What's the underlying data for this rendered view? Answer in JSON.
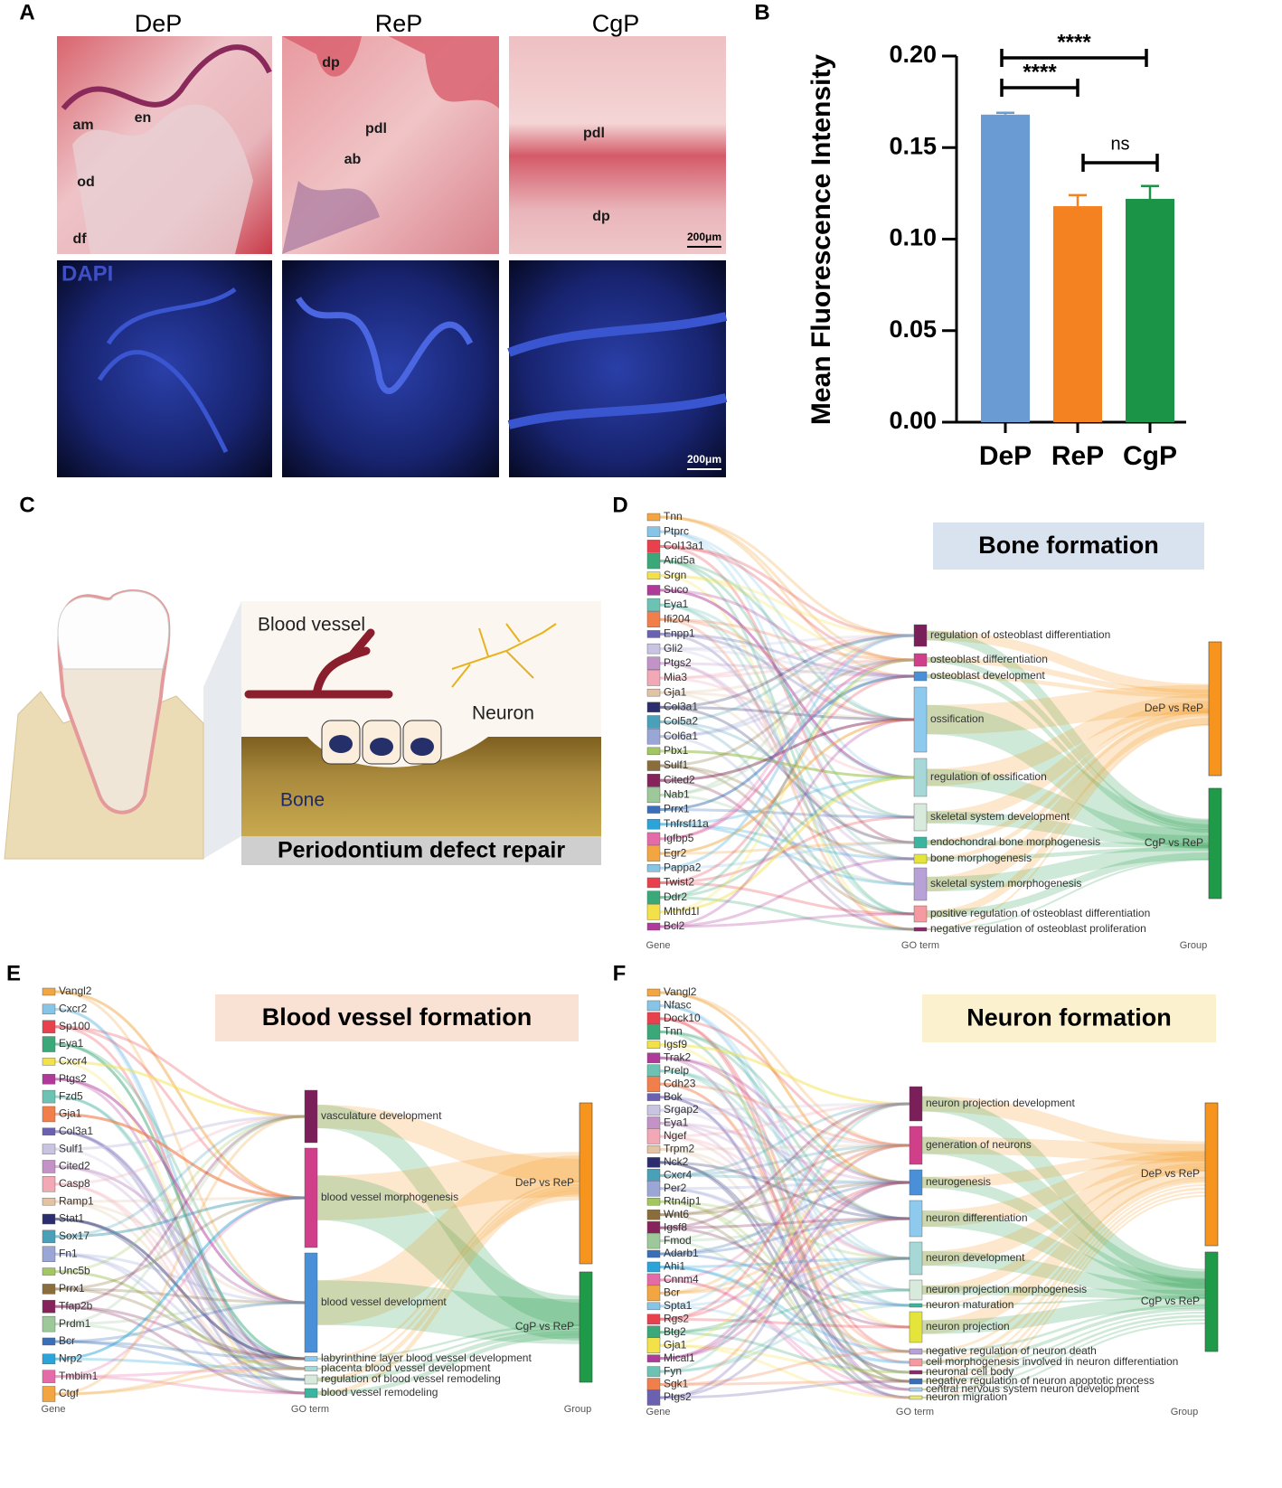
{
  "panel_labels": [
    "A",
    "B",
    "C",
    "D",
    "E",
    "F"
  ],
  "panel_a": {
    "columns": [
      "DeP",
      "ReP",
      "CgP"
    ],
    "stain_label": "DAPI",
    "annotations": [
      "am",
      "en",
      "od",
      "df",
      "dp",
      "pdl",
      "ab",
      "pdl",
      "dp"
    ],
    "scale_bars": [
      "200μm",
      "200μm"
    ]
  },
  "chart_data": {
    "type": "bar",
    "ylabel": "Mean Fluorescence Intensity",
    "categories": [
      "DeP",
      "ReP",
      "CgP"
    ],
    "values": [
      0.168,
      0.118,
      0.122
    ],
    "errors": [
      0.001,
      0.006,
      0.007
    ],
    "colors": [
      "#6a9bd3",
      "#f58220",
      "#1b9448"
    ],
    "ylim": [
      0,
      0.2
    ],
    "yticks": [
      {
        "value": 0,
        "label": "0.00"
      },
      {
        "value": 0.05,
        "label": "0.05"
      },
      {
        "value": 0.1,
        "label": "0.10"
      },
      {
        "value": 0.15,
        "label": "0.15"
      },
      {
        "value": 0.2,
        "label": "0.20"
      }
    ],
    "significance": [
      "****",
      "****",
      "ns"
    ]
  },
  "panel_c": {
    "labels": [
      "Blood vessel",
      "Neuron",
      "Bone"
    ],
    "caption": "Periodontium defect repair"
  },
  "sankeys": [
    {
      "title": "Bone formation",
      "columns": [
        "Gene",
        "GO term",
        "Group"
      ],
      "genes": [
        "Tnn",
        "Ptprc",
        "Col13a1",
        "Arid5a",
        "Srgn",
        "Suco",
        "Eya1",
        "Ifi204",
        "Enpp1",
        "Gli2",
        "Ptgs2",
        "Mia3",
        "Gja1",
        "Col3a1",
        "Col5a2",
        "Col6a1",
        "Pbx1",
        "Sulf1",
        "Cited2",
        "Nab1",
        "Prrx1",
        "Tnfrsf11a",
        "Igfbp5",
        "Egr2",
        "Pappa2",
        "Twist2",
        "Ddr2",
        "Mthfd1l",
        "Bcl2"
      ],
      "go_terms": [
        "regulation of osteoblast differentiation",
        "osteoblast differentiation",
        "osteoblast development",
        "ossification",
        "regulation of ossification",
        "skeletal system development",
        "endochondral bone morphogenesis",
        "bone morphogenesis",
        "skeletal system morphogenesis",
        "positive regulation of osteoblast differentiation",
        "negative regulation of osteoblast proliferation"
      ],
      "groups": [
        "DeP vs ReP",
        "CgP vs ReP"
      ]
    },
    {
      "title": "Blood vessel formation",
      "columns": [
        "Gene",
        "GO term",
        "Group"
      ],
      "genes": [
        "Vangl2",
        "Cxcr2",
        "Sp100",
        "Eya1",
        "Cxcr4",
        "Ptgs2",
        "Fzd5",
        "Gja1",
        "Col3a1",
        "Sulf1",
        "Cited2",
        "Casp8",
        "Ramp1",
        "Stat1",
        "Sox17",
        "Fn1",
        "Unc5b",
        "Prrx1",
        "Tfap2b",
        "Prdm1",
        "Bcr",
        "Nrp2",
        "Tmbim1",
        "Ctgf"
      ],
      "go_terms": [
        "vasculature development",
        "blood vessel morphogenesis",
        "blood vessel development",
        "labyrinthine layer blood vessel development",
        "placenta blood vessel development",
        "regulation of blood vessel remodeling",
        "blood vessel remodeling"
      ],
      "groups": [
        "DeP vs ReP",
        "CgP vs ReP"
      ]
    },
    {
      "title": "Neuron formation",
      "columns": [
        "Gene",
        "GO term",
        "Group"
      ],
      "genes": [
        "Vangl2",
        "Nfasc",
        "Dock10",
        "Tnn",
        "Igsf9",
        "Trak2",
        "Prelp",
        "Cdh23",
        "Bok",
        "Srgap2",
        "Eya1",
        "Ngef",
        "Trpm2",
        "Nck2",
        "Cxcr4",
        "Per2",
        "Rtn4ip1",
        "Wnt6",
        "Igsf8",
        "Fmod",
        "Adarb1",
        "Ahi1",
        "Cnnm4",
        "Bcr",
        "Spta1",
        "Rgs2",
        "Btg2",
        "Gja1",
        "Mical1",
        "Fyn",
        "Sgk1",
        "Ptgs2"
      ],
      "go_terms": [
        "neuron projection development",
        "generation of neurons",
        "neurogenesis",
        "neuron differentiation",
        "neuron development",
        "neuron projection morphogenesis",
        "neuron maturation",
        "neuron projection",
        "negative regulation of neuron death",
        "cell morphogenesis involved in neuron differentiation",
        "neuronal cell body",
        "negative regulation of neuron apoptotic process",
        "central nervous system neuron development",
        "neuron migration"
      ],
      "groups": [
        "DeP vs ReP",
        "CgP vs ReP"
      ]
    }
  ]
}
